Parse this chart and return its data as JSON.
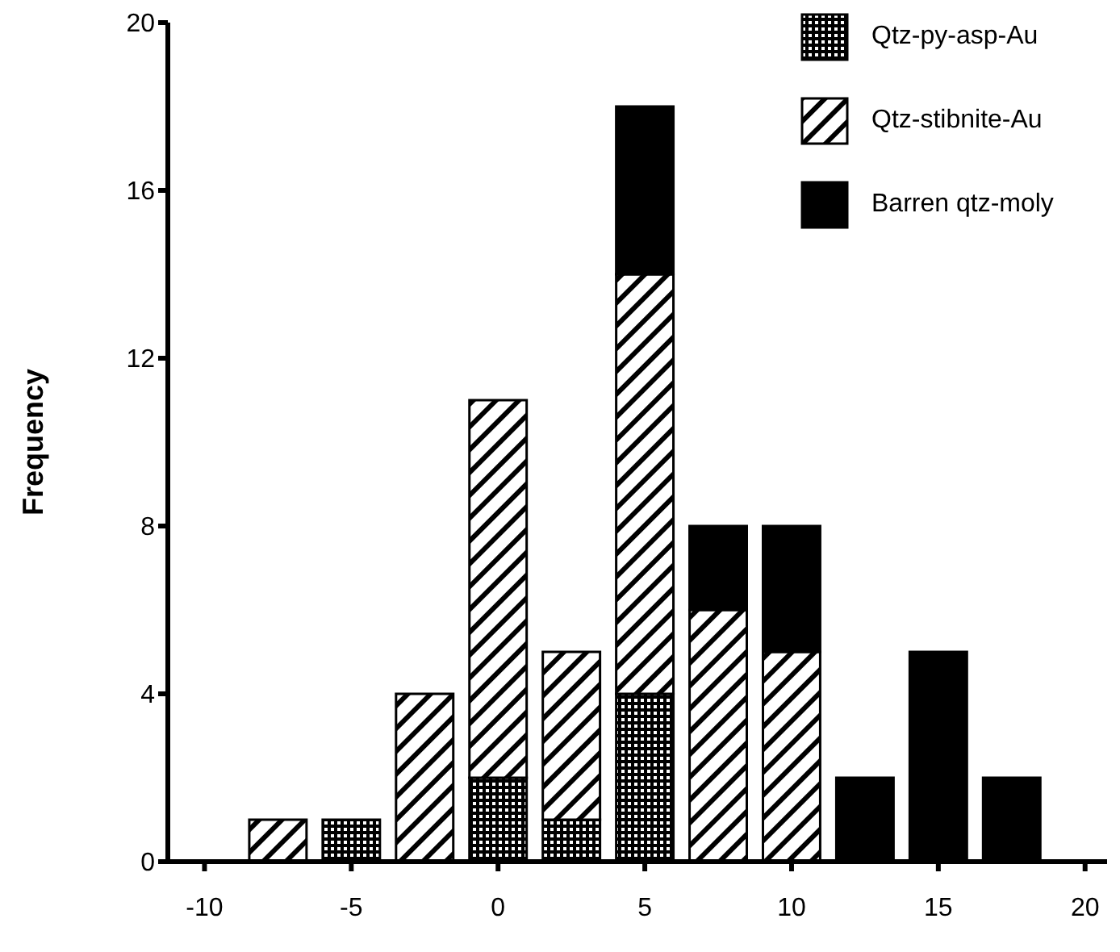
{
  "chart_data": {
    "type": "bar",
    "ylabel": "Frequency",
    "x": [
      -7.5,
      -5,
      -2.5,
      0,
      2.5,
      5,
      7.5,
      10,
      12.5,
      15,
      17.5
    ],
    "stacked": true,
    "series": [
      {
        "name": "Qtz-py-asp-Au",
        "color": "#000000",
        "values": [
          0,
          1,
          0,
          2,
          1,
          4,
          0,
          0,
          0,
          0,
          0
        ]
      },
      {
        "name": "Qtz-stibnite-Au",
        "color": "#000000",
        "values": [
          1,
          0,
          4,
          9,
          4,
          10,
          6,
          5,
          0,
          0,
          0
        ]
      },
      {
        "name": "Barren qtz-moly",
        "color": "#000000",
        "values": [
          0,
          0,
          0,
          0,
          0,
          4,
          2,
          3,
          2,
          5,
          2
        ]
      }
    ],
    "xlim": [
      -11.25,
      20.75
    ],
    "xticks": [
      -10,
      -5,
      0,
      5,
      10,
      15,
      20
    ],
    "ylim": [
      0,
      20
    ],
    "yticks": [
      0,
      4,
      8,
      12,
      16,
      20
    ],
    "grid": false,
    "legend": "top right"
  }
}
